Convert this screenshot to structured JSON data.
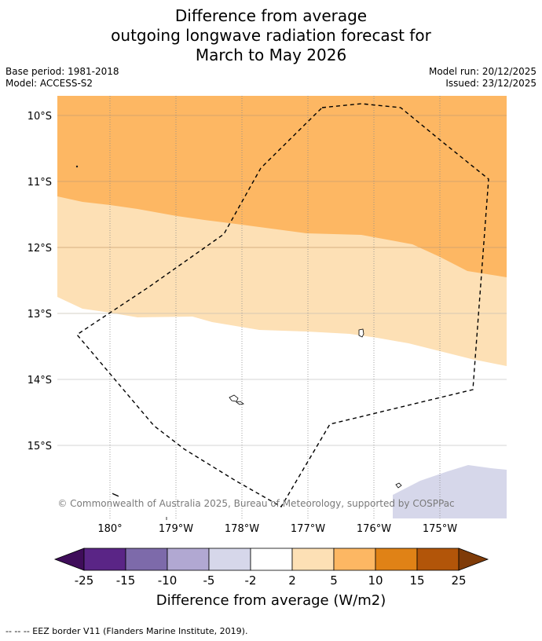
{
  "title": {
    "line1": "Difference from average",
    "line2": "outgoing longwave radiation forecast for",
    "line3": "March to May 2026"
  },
  "meta": {
    "base_period": "Base period: 1981-2018",
    "model": "Model: ACCESS-S2",
    "model_run": "Model run: 20/12/2025",
    "issued": "Issued: 23/12/2025"
  },
  "map": {
    "lat_labels": [
      "10°S",
      "11°S",
      "12°S",
      "13°S",
      "14°S",
      "15°S"
    ],
    "lon_labels": [
      "180°",
      "179°W",
      "178°W",
      "177°W",
      "176°W",
      "175°W"
    ],
    "copyright": "© Commonwealth of Australia 2025, Bureau of Meteorology, supported by COSPPac",
    "border_label": "EEZ border V11"
  },
  "legend": {
    "ticks": [
      "-25",
      "-15",
      "-10",
      "-5",
      "-2",
      "2",
      "5",
      "10",
      "15",
      "25"
    ],
    "title": "Difference from average (W/m2)",
    "colors": {
      "below_min": "#3f0d5a",
      "c1": "#5a2586",
      "c2": "#7d6aaa",
      "c3": "#b1a8d2",
      "c4": "#d6d7ea",
      "c5": "#ffffff",
      "c6": "#fde0b5",
      "c7": "#fdb763",
      "c8": "#e08216",
      "c9": "#b25509",
      "above_max": "#7f3b08"
    }
  },
  "footer": {
    "eez_note": "--  --  -- EEZ border V11 (Flanders Marine Institute, 2019)."
  }
}
